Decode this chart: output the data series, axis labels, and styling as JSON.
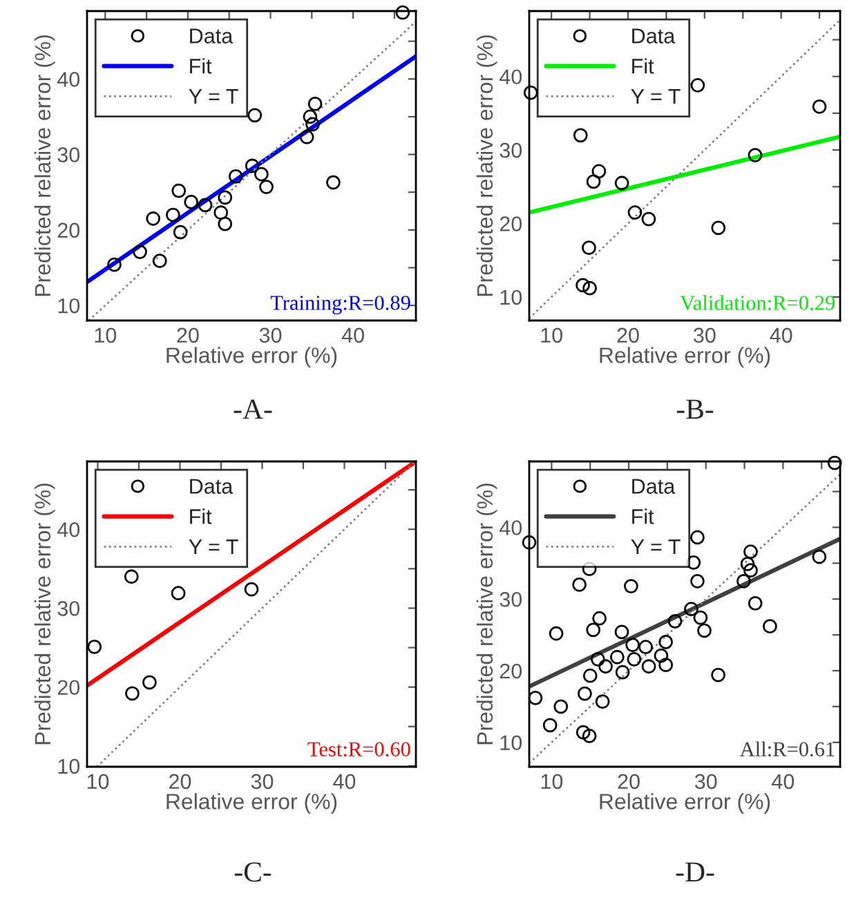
{
  "chart_data": [
    {
      "type": "scatter",
      "title": "-A-",
      "xlabel": "Relative error (%)",
      "ylabel": "Predicted relative error (%)",
      "xlim": [
        7.8,
        47.6
      ],
      "ylim": [
        8,
        49
      ],
      "xticks": [
        10,
        {
          "value": 15,
          "label": null
        },
        20,
        {
          "value": 25,
          "label": null
        },
        30,
        {
          "value": 35,
          "label": null
        },
        40,
        {
          "value": 45,
          "label": null
        }
      ],
      "yticks": [
        10,
        {
          "value": 15,
          "label": null
        },
        20,
        {
          "value": 25,
          "label": null
        },
        30,
        {
          "value": 35,
          "label": null
        },
        40,
        {
          "value": 45,
          "label": null
        }
      ],
      "legend": "top left",
      "grid": false,
      "annotations": [
        "Training:R=0.89"
      ],
      "series": [
        {
          "name": "Data",
          "type": "scatter",
          "marker": "circle",
          "color": "#000000",
          "x": [
            11.1,
            14.2,
            15.8,
            16.6,
            18.2,
            18.9,
            19.1,
            20.4,
            22.1,
            24.0,
            24.5,
            24.5,
            25.8,
            27.8,
            28.1,
            28.9,
            29.5,
            34.4,
            34.8,
            35.4,
            35.1,
            37.6,
            46.0
          ],
          "values": [
            15.4,
            17.1,
            21.5,
            15.9,
            22.0,
            25.2,
            19.7,
            23.7,
            23.3,
            22.3,
            24.3,
            20.8,
            27.1,
            28.5,
            35.2,
            27.4,
            25.7,
            32.3,
            35.0,
            36.7,
            34.0,
            26.3,
            48.8
          ]
        },
        {
          "name": "Fit",
          "type": "line",
          "line_style": "solid",
          "color": "#0000ff",
          "x": [
            7.8,
            47.6
          ],
          "values": [
            13.1,
            43.0
          ]
        },
        {
          "name": "Y = T",
          "type": "line",
          "line_style": "dotted",
          "color": "#808080",
          "x": [
            8,
            47.6
          ],
          "values": [
            8,
            47.6
          ]
        }
      ]
    },
    {
      "type": "scatter",
      "title": "-B-",
      "xlabel": "Relative error (%)",
      "ylabel": "Predicted relative error (%)",
      "xlim": [
        7.1,
        47.7
      ],
      "ylim": [
        6.8,
        48.9
      ],
      "xticks": [
        10,
        {
          "value": 15,
          "label": null
        },
        20,
        {
          "value": 25,
          "label": null
        },
        30,
        {
          "value": 35,
          "label": null
        },
        40,
        {
          "value": 45,
          "label": null
        }
      ],
      "yticks": [
        10,
        {
          "value": 15,
          "label": null
        },
        20,
        {
          "value": 25,
          "label": null
        },
        30,
        {
          "value": 35,
          "label": null
        },
        40,
        {
          "value": 45,
          "label": null
        }
      ],
      "legend": "top left",
      "grid": false,
      "annotations": [
        "Validation:R=0.29"
      ],
      "series": [
        {
          "name": "Data",
          "type": "scatter",
          "marker": "circle",
          "color": "#000000",
          "x": [
            7.3,
            13.8,
            14.1,
            15.0,
            14.9,
            16.2,
            15.5,
            19.2,
            20.9,
            22.7,
            29.1,
            31.8,
            36.6,
            45.0
          ],
          "values": [
            37.8,
            32.0,
            11.6,
            11.2,
            16.7,
            27.1,
            25.7,
            25.5,
            21.5,
            20.6,
            38.8,
            19.4,
            29.3,
            35.9
          ]
        },
        {
          "name": "Fit",
          "type": "line",
          "line_style": "solid",
          "color": "#00ee00",
          "x": [
            7.1,
            47.7
          ],
          "values": [
            21.5,
            31.8
          ]
        },
        {
          "name": "Y = T",
          "type": "line",
          "line_style": "dotted",
          "color": "#808080",
          "x": [
            7.1,
            47.7
          ],
          "values": [
            7.1,
            47.7
          ]
        }
      ]
    },
    {
      "type": "scatter",
      "title": "-C-",
      "xlabel": "Relative error (%)",
      "ylabel": "Predicted relative error (%)",
      "xlim": [
        8.7,
        48.7
      ],
      "ylim": [
        9.9,
        48.6
      ],
      "xticks": [
        10,
        {
          "value": 15,
          "label": null
        },
        20,
        {
          "value": 25,
          "label": null
        },
        30,
        {
          "value": 35,
          "label": null
        },
        40,
        {
          "value": 45,
          "label": null
        }
      ],
      "yticks": [
        10,
        {
          "value": 15,
          "label": null
        },
        20,
        {
          "value": 25,
          "label": null
        },
        30,
        {
          "value": 35,
          "label": null
        },
        40,
        {
          "value": 45,
          "label": null
        }
      ],
      "legend": "top left",
      "grid": false,
      "annotations": [
        "Test:R=0.60"
      ],
      "series": [
        {
          "name": "Data",
          "type": "scatter",
          "marker": "circle",
          "color": "#000000",
          "x": [
            9.6,
            14.1,
            14.2,
            16.3,
            19.8,
            28.7
          ],
          "values": [
            25.1,
            34.0,
            19.2,
            20.6,
            31.9,
            32.4
          ]
        },
        {
          "name": "Fit",
          "type": "line",
          "line_style": "solid",
          "color": "#ff0000",
          "x": [
            8.7,
            48.7
          ],
          "values": [
            20.2,
            48.6
          ]
        },
        {
          "name": "Y = T",
          "type": "line",
          "line_style": "dotted",
          "color": "#808080",
          "x": [
            9.9,
            48.6
          ],
          "values": [
            9.9,
            48.6
          ]
        }
      ]
    },
    {
      "type": "scatter",
      "title": "-D-",
      "xlabel": "Relative error (%)",
      "ylabel": "Predicted relative error (%)",
      "xlim": [
        7.1,
        47.4
      ],
      "ylim": [
        6.6,
        49.2
      ],
      "xticks": [
        10,
        {
          "value": 15,
          "label": null
        },
        20,
        {
          "value": 25,
          "label": null
        },
        30,
        {
          "value": 35,
          "label": null
        },
        40,
        {
          "value": 45,
          "label": null
        }
      ],
      "yticks": [
        10,
        {
          "value": 15,
          "label": null
        },
        20,
        {
          "value": 25,
          "label": null
        },
        30,
        {
          "value": 35,
          "label": null
        },
        40,
        {
          "value": 45,
          "label": null
        }
      ],
      "legend": "top left",
      "grid": false,
      "annotations": [
        "All:R=0.61"
      ],
      "series": [
        {
          "name": "Data",
          "type": "scatter",
          "marker": "circle",
          "color": "#000000",
          "x": [
            7.1,
            7.9,
            9.8,
            10.6,
            11.2,
            13.6,
            14.1,
            14.3,
            14.9,
            14.9,
            15.0,
            15.4,
            16.2,
            16.0,
            16.6,
            17.0,
            18.5,
            19.1,
            19.2,
            20.3,
            20.5,
            20.7,
            22.2,
            22.6,
            24.2,
            24.8,
            24.8,
            26.0,
            28.1,
            28.4,
            28.9,
            28.9,
            29.3,
            29.8,
            31.6,
            34.9,
            35.4,
            35.8,
            35.8,
            36.4,
            38.3,
            44.7,
            46.7
          ],
          "values": [
            37.9,
            16.2,
            12.4,
            25.2,
            15.0,
            32.0,
            11.4,
            16.8,
            10.9,
            34.2,
            19.3,
            25.7,
            27.3,
            21.6,
            15.7,
            20.6,
            21.9,
            25.4,
            19.8,
            31.8,
            23.6,
            21.6,
            23.3,
            20.6,
            22.1,
            24.0,
            20.8,
            26.9,
            28.6,
            35.1,
            38.6,
            32.5,
            27.4,
            25.6,
            19.4,
            32.5,
            34.9,
            36.6,
            34.0,
            29.4,
            26.2,
            35.9,
            49.0
          ]
        },
        {
          "name": "Fit",
          "type": "line",
          "line_style": "solid",
          "color": "#404040",
          "x": [
            7.1,
            47.4
          ],
          "values": [
            17.8,
            38.4
          ]
        },
        {
          "name": "Y = T",
          "type": "line",
          "line_style": "dotted",
          "color": "#808080",
          "x": [
            7.1,
            47.4
          ],
          "values": [
            7.1,
            47.4
          ]
        }
      ]
    }
  ]
}
